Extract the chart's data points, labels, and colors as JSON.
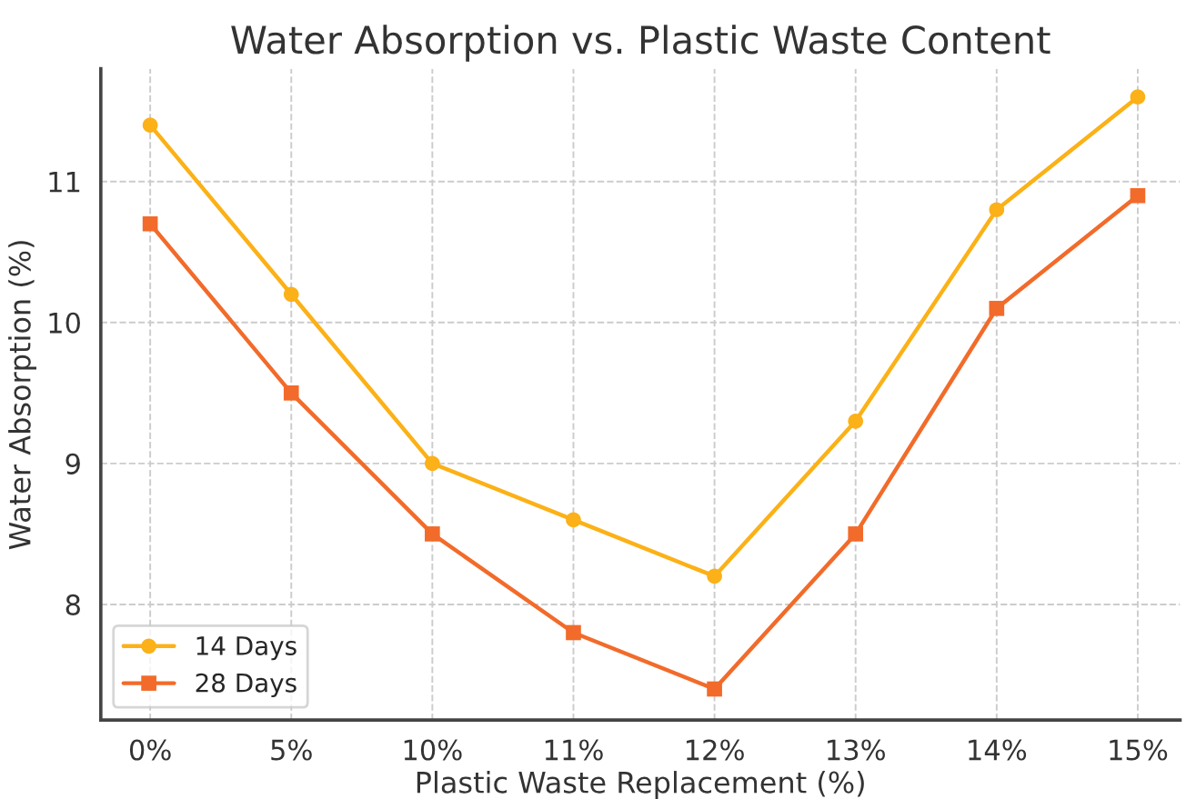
{
  "chart_data": {
    "type": "line",
    "title": "Water Absorption vs. Plastic Waste Content",
    "xlabel": "Plastic Waste Replacement (%)",
    "ylabel": "Water Absorption (%)",
    "categories": [
      "0%",
      "5%",
      "10%",
      "11%",
      "12%",
      "13%",
      "14%",
      "15%"
    ],
    "series": [
      {
        "name": "14 Days",
        "color": "#fbb117",
        "marker": "circle",
        "values": [
          11.4,
          10.2,
          9.0,
          8.6,
          8.2,
          9.3,
          10.8,
          11.6
        ]
      },
      {
        "name": "28 Days",
        "color": "#f26b2a",
        "marker": "square",
        "values": [
          10.7,
          9.5,
          8.5,
          7.8,
          7.4,
          8.5,
          10.1,
          10.9
        ]
      }
    ],
    "ylim": [
      7.18,
      11.8
    ],
    "yticks": [
      8,
      9,
      10,
      11
    ],
    "grid": true,
    "legend": "bottom left",
    "line_style": "solid"
  }
}
